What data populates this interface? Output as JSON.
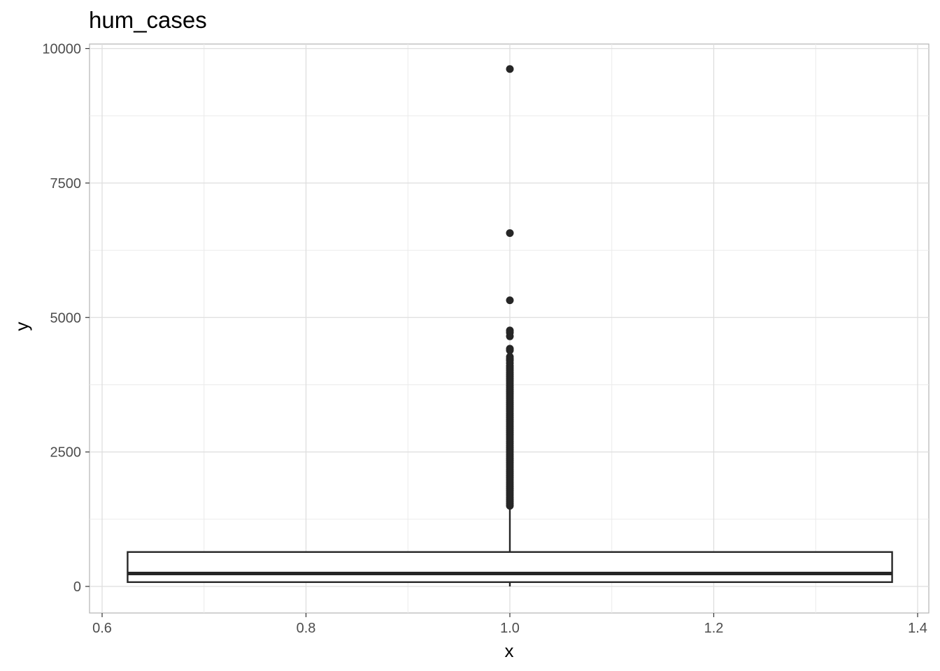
{
  "chart_data": {
    "type": "boxplot",
    "title": "hum_cases",
    "xlabel": "x",
    "ylabel": "y",
    "xlim": [
      0.6,
      1.4
    ],
    "ylim": [
      0,
      10000
    ],
    "x_ticks": [
      {
        "value": 0.6,
        "label": "0.6"
      },
      {
        "value": 0.8,
        "label": "0.8"
      },
      {
        "value": 1.0,
        "label": "1.0"
      },
      {
        "value": 1.2,
        "label": "1.2"
      },
      {
        "value": 1.4,
        "label": "1.4"
      }
    ],
    "y_ticks": [
      {
        "value": 0,
        "label": "0"
      },
      {
        "value": 2500,
        "label": "2500"
      },
      {
        "value": 5000,
        "label": "5000"
      },
      {
        "value": 7500,
        "label": "7500"
      },
      {
        "value": 10000,
        "label": "10000"
      }
    ],
    "grid": true,
    "box": {
      "x": 1.0,
      "x_range": [
        0.625,
        1.375
      ],
      "lower_whisker": 0,
      "q1": 80,
      "median": 240,
      "q3": 640,
      "upper_whisker": 1480
    },
    "outliers": [
      9620,
      6570,
      5320,
      4760,
      4720,
      4650,
      4420,
      4390,
      4270,
      4230,
      4200,
      4150,
      4100,
      4060,
      4020,
      3980,
      3940,
      3900,
      3860,
      3820,
      3780,
      3740,
      3700,
      3660,
      3620,
      3580,
      3540,
      3500,
      3460,
      3420,
      3380,
      3340,
      3300,
      3260,
      3220,
      3180,
      3140,
      3100,
      3060,
      3020,
      2980,
      2940,
      2900,
      2860,
      2820,
      2780,
      2740,
      2700,
      2660,
      2620,
      2580,
      2540,
      2500,
      2460,
      2420,
      2380,
      2340,
      2300,
      2260,
      2220,
      2180,
      2140,
      2100,
      2060,
      2020,
      1980,
      1940,
      1900,
      1860,
      1820,
      1780,
      1740,
      1700,
      1660,
      1620,
      1580,
      1540,
      1500
    ]
  }
}
